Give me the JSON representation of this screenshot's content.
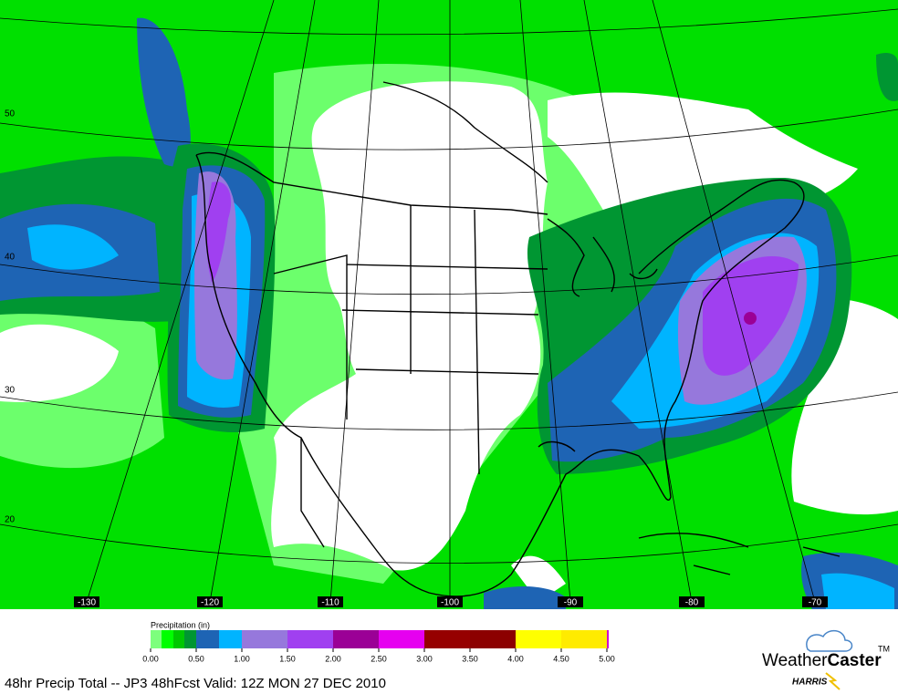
{
  "map": {
    "lat_labels": [
      "50",
      "40",
      "30",
      "20"
    ],
    "lon_labels": [
      "-130",
      "-120",
      "-110",
      "-100",
      "-90",
      "-80",
      "-70"
    ]
  },
  "legend": {
    "title": "Precipitation (in)",
    "colors": [
      "#7dff7d",
      "#00ff00",
      "#00c800",
      "#009632",
      "#1e64b4",
      "#00b4ff",
      "#9678dc",
      "#a040f0",
      "#9b0096",
      "#e600f0",
      "#960000",
      "#8c0000",
      "#ffff00",
      "#ffeb00"
    ],
    "end_color": "#d000d0",
    "tick_labels": [
      "0.00",
      "0.50",
      "1.00",
      "1.50",
      "2.00",
      "2.50",
      "3.00",
      "3.50",
      "4.00",
      "4.50",
      "5.00"
    ]
  },
  "caption": "48hr Precip Total -- JP3  48hFcst Valid: 12Z MON 27 DEC 2010",
  "logo": {
    "word1": "Weather",
    "word2": "Caster",
    "trademark": "TM",
    "company": "HARRIS"
  }
}
